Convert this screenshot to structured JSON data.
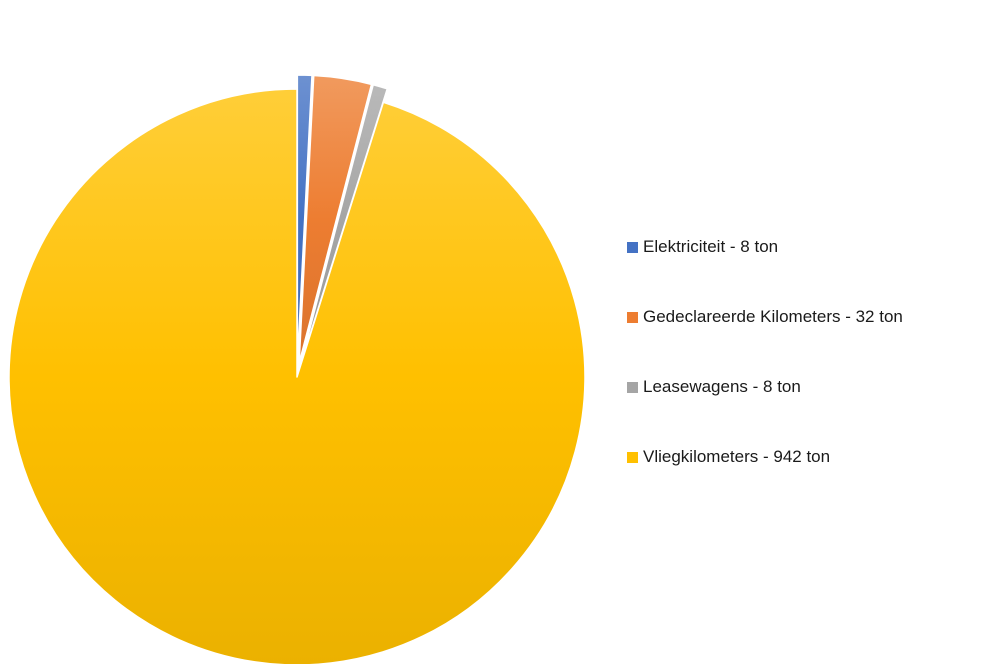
{
  "chart_data": {
    "type": "pie",
    "unit": "ton",
    "slices": [
      {
        "label": "Elektriciteit - 8 ton",
        "value": 8,
        "color": "#4472c4",
        "exploded": true
      },
      {
        "label": "Gedeclareerde Kilometers - 32 ton",
        "value": 32,
        "color": "#ed7d31",
        "exploded": true
      },
      {
        "label": "Leasewagens - 8 ton",
        "value": 8,
        "color": "#a5a5a5",
        "exploded": true
      },
      {
        "label": "Vliegkilometers - 942 ton",
        "value": 942,
        "color": "#ffc000",
        "exploded": false
      }
    ],
    "legend_position": "right",
    "start_angle": "12 o'clock",
    "direction": "clockwise"
  }
}
